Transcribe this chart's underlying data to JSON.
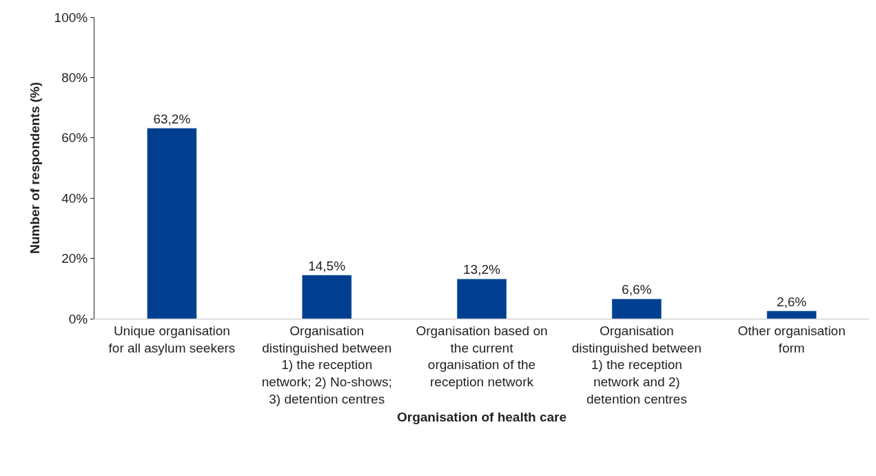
{
  "chart_data": {
    "type": "bar",
    "xlabel": "Organisation of health care",
    "ylabel": "Number of respondents (%)",
    "categories": [
      "Unique organisation for all asylum seekers",
      "Organisation distinguished between 1) the reception network; 2) No-shows; 3) detention centres",
      "Organisation based on the current organisation of the reception network",
      "Organisation distinguished between 1) the reception network and 2) detention centres",
      "Other organisation form"
    ],
    "values": [
      63.2,
      14.5,
      13.2,
      6.6,
      2.6
    ],
    "value_labels": [
      "63,2%",
      "14,5%",
      "13,2%",
      "6,6%",
      "2,6%"
    ],
    "color": "#003f8f",
    "ylim": [
      0,
      100
    ],
    "yticks": [
      {
        "value": 0,
        "label": "0%"
      },
      {
        "value": 20,
        "label": "20%"
      },
      {
        "value": 40,
        "label": "40%"
      },
      {
        "value": 60,
        "label": "60%"
      },
      {
        "value": 80,
        "label": "80%"
      },
      {
        "value": 100,
        "label": "100%"
      }
    ],
    "legend": false
  }
}
